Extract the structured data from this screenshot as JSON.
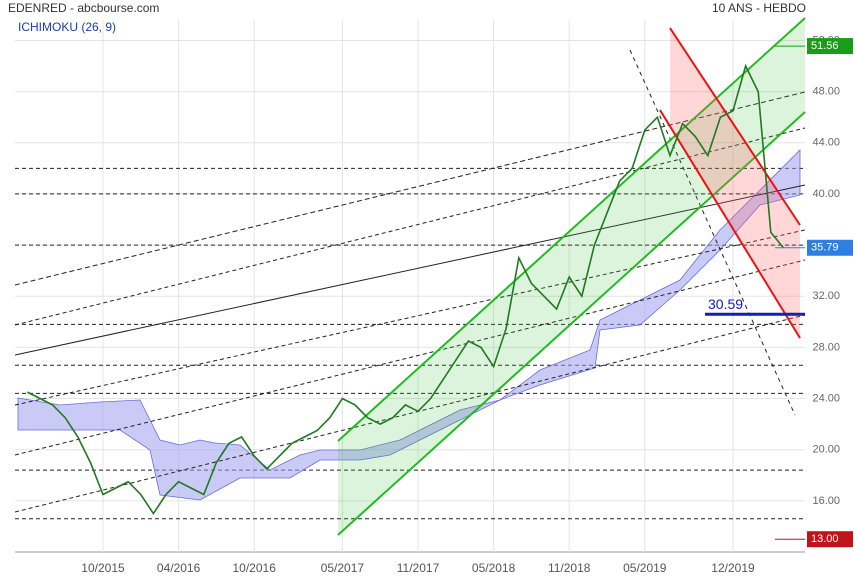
{
  "chart_data": {
    "type": "line",
    "title": "EDENRED - abcbourse.com",
    "subtitle": "10 ANS - HEBDO",
    "indicator": "ICHIMOKU (26, 9)",
    "x": [
      "04/2015",
      "05/2015",
      "06/2015",
      "07/2015",
      "08/2015",
      "09/2015",
      "10/2015",
      "11/2015",
      "12/2015",
      "01/2016",
      "02/2016",
      "03/2016",
      "04/2016",
      "05/2016",
      "06/2016",
      "07/2016",
      "08/2016",
      "09/2016",
      "10/2016",
      "11/2016",
      "12/2016",
      "01/2017",
      "02/2017",
      "03/2017",
      "04/2017",
      "05/2017",
      "06/2017",
      "07/2017",
      "08/2017",
      "09/2017",
      "10/2017",
      "11/2017",
      "12/2017",
      "01/2018",
      "02/2018",
      "03/2018",
      "04/2018",
      "05/2018",
      "06/2018",
      "07/2018",
      "08/2018",
      "09/2018",
      "10/2018",
      "11/2018",
      "12/2018",
      "01/2019",
      "02/2019",
      "03/2019",
      "04/2019",
      "05/2019",
      "06/2019",
      "07/2019",
      "08/2019",
      "09/2019",
      "10/2019",
      "11/2019",
      "12/2019",
      "01/2020",
      "02/2020",
      "03/2020",
      "04/2020"
    ],
    "series": [
      {
        "color": "#1f7a1f",
        "values": [
          24.5,
          24,
          23.5,
          22.5,
          21,
          19,
          16.5,
          17,
          17.5,
          16.5,
          15,
          16.5,
          17.5,
          17,
          16.5,
          19,
          20.5,
          21,
          19.5,
          18.5,
          19.5,
          20.5,
          21,
          21.5,
          22.5,
          24,
          23.5,
          22.5,
          22,
          22.5,
          23.5,
          23,
          24,
          25.5,
          27,
          28.5,
          28,
          26.5,
          29.5,
          35,
          33,
          32,
          31,
          33.5,
          32,
          36,
          38.5,
          41,
          42,
          45,
          46,
          43,
          45.5,
          44.5,
          43,
          46,
          46.5,
          50,
          48,
          37,
          35.79
        ]
      }
    ],
    "xticks": [
      "10/2015",
      "04/2016",
      "10/2016",
      "05/2017",
      "11/2017",
      "05/2018",
      "11/2018",
      "05/2019",
      "12/2019"
    ],
    "ylim": [
      12,
      53.6
    ],
    "yticks": [
      {
        "value": 16,
        "label": "16.00"
      },
      {
        "value": 20,
        "label": "20.00"
      },
      {
        "value": 24,
        "label": "24.00"
      },
      {
        "value": 28,
        "label": "28.00"
      },
      {
        "value": 32,
        "label": "32.00"
      },
      {
        "value": 36,
        "label": "36.00"
      },
      {
        "value": 40,
        "label": "40.00"
      },
      {
        "value": 44,
        "label": "44.00"
      },
      {
        "value": 48,
        "label": "48.00"
      },
      {
        "value": 52,
        "label": "52.00"
      }
    ],
    "grid": true,
    "support_lines": [
      42,
      40,
      36,
      29.8,
      26.6,
      24.4,
      18.4,
      14.6
    ],
    "levels": [
      {
        "value": 51.56,
        "color": "#1a9c1a"
      },
      {
        "value": 35.79,
        "color": "#2f7fe0"
      },
      {
        "value": {
          "value": 13,
          "label": "13.00"
        },
        "color": "#c0141b"
      }
    ],
    "marker": {
      "value": 30.59,
      "color": "#1420b4"
    }
  }
}
